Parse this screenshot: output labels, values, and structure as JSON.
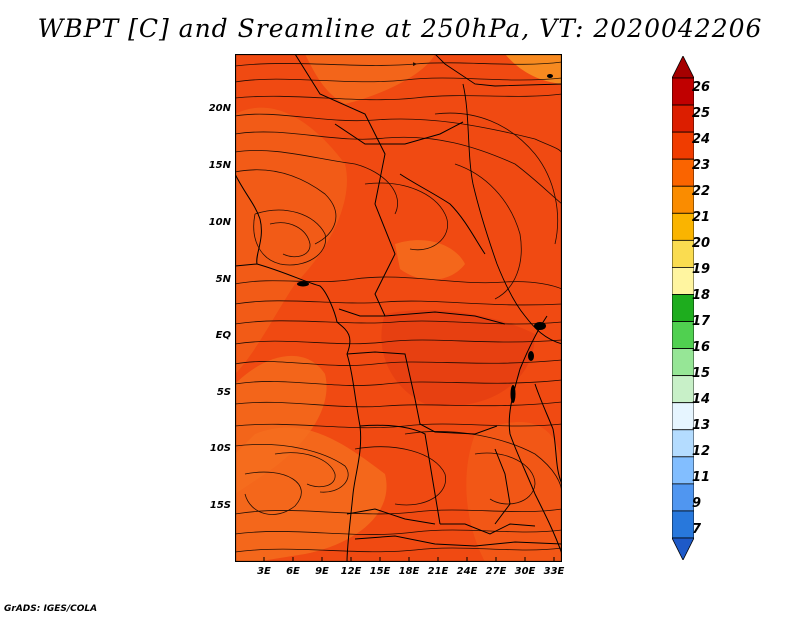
{
  "title": "WBPT [C] and Sreamline at 250hPa, VT: 2020042206",
  "footer": "GrADS: IGES/COLA",
  "lat_labels": [
    "20N",
    "15N",
    "10N",
    "5N",
    "EQ",
    "5S",
    "10S",
    "15S"
  ],
  "lon_labels": [
    "3E",
    "6E",
    "9E",
    "12E",
    "15E",
    "18E",
    "21E",
    "24E",
    "27E",
    "30E",
    "33E"
  ],
  "colorbar": {
    "labels": [
      "26",
      "25",
      "24",
      "23",
      "22",
      "21",
      "20",
      "19",
      "18",
      "17",
      "16",
      "15",
      "14",
      "13",
      "12",
      "11",
      "9",
      "7"
    ],
    "colors": [
      "#a50000",
      "#c00000",
      "#dc1e00",
      "#f03c00",
      "#fa6400",
      "#fa8c00",
      "#fab400",
      "#fadc50",
      "#fff5a0",
      "#1ead1e",
      "#50d050",
      "#96e696",
      "#c8f0c8",
      "#e6f5ff",
      "#b4dcff",
      "#82beff",
      "#5096f0",
      "#2878dc",
      "#1e5ac8"
    ]
  },
  "colors": {
    "field_main": "#f04a12",
    "field_warm": "#f25d18",
    "field_hot": "#f78a20",
    "field_cool": "#e03810",
    "coast": "#000000"
  }
}
